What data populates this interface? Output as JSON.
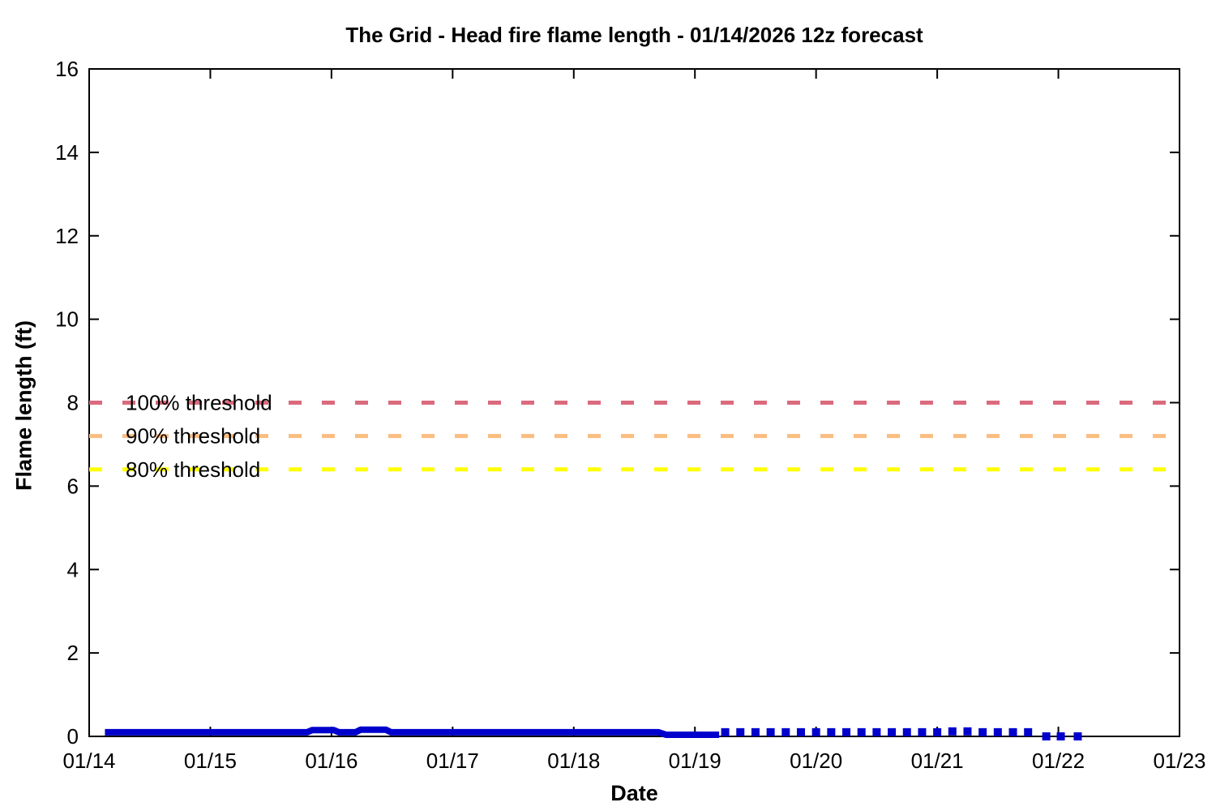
{
  "chart_data": {
    "type": "line",
    "title": "The Grid - Head fire flame length - 01/14/2026 12z forecast",
    "xlabel": "Date",
    "ylabel": "Flame length (ft)",
    "x_tick_labels": [
      "01/14",
      "01/15",
      "01/16",
      "01/17",
      "01/18",
      "01/19",
      "01/20",
      "01/21",
      "01/22",
      "01/23"
    ],
    "y_ticks": [
      0,
      2,
      4,
      6,
      8,
      10,
      12,
      14,
      16
    ],
    "ylim": [
      0,
      16
    ],
    "xlim_days": [
      0,
      9
    ],
    "grid": false,
    "legend_position": "none",
    "background_color": "#ffffff",
    "axis_color": "#000000",
    "thresholds": [
      {
        "id": "100",
        "label": "100% threshold",
        "value": 8,
        "color": "#db6a7d"
      },
      {
        "id": "90",
        "label": "90% threshold",
        "value": 7.2,
        "color": "#fabd81"
      },
      {
        "id": "80",
        "label": "80% threshold",
        "value": 6.4,
        "color": "#ffff00"
      }
    ],
    "series": [
      {
        "name": "flame-length-solid",
        "style": "solid",
        "color": "#0000cd",
        "points": [
          [
            0.13,
            0.1
          ],
          [
            1.8,
            0.1
          ],
          [
            1.84,
            0.15
          ],
          [
            2.02,
            0.15
          ],
          [
            2.06,
            0.1
          ],
          [
            2.2,
            0.1
          ],
          [
            2.24,
            0.16
          ],
          [
            2.45,
            0.16
          ],
          [
            2.49,
            0.1
          ],
          [
            4.7,
            0.1
          ],
          [
            4.76,
            0.04
          ],
          [
            5.2,
            0.04
          ]
        ]
      },
      {
        "name": "flame-length-forecast-dots",
        "style": "dots",
        "color": "#0000cd",
        "points": [
          [
            5.25,
            0.1
          ],
          [
            5.375,
            0.1
          ],
          [
            5.5,
            0.1
          ],
          [
            5.625,
            0.1
          ],
          [
            5.75,
            0.1
          ],
          [
            5.875,
            0.1
          ],
          [
            6.0,
            0.1
          ],
          [
            6.125,
            0.1
          ],
          [
            6.25,
            0.1
          ],
          [
            6.375,
            0.1
          ],
          [
            6.5,
            0.1
          ],
          [
            6.625,
            0.1
          ],
          [
            6.75,
            0.1
          ],
          [
            6.875,
            0.1
          ],
          [
            7.0,
            0.1
          ],
          [
            7.125,
            0.12
          ],
          [
            7.25,
            0.12
          ],
          [
            7.375,
            0.1
          ],
          [
            7.5,
            0.1
          ],
          [
            7.625,
            0.1
          ],
          [
            7.75,
            0.1
          ],
          [
            7.9,
            0.0
          ],
          [
            8.02,
            0.0
          ],
          [
            8.16,
            0.0
          ]
        ]
      }
    ]
  }
}
